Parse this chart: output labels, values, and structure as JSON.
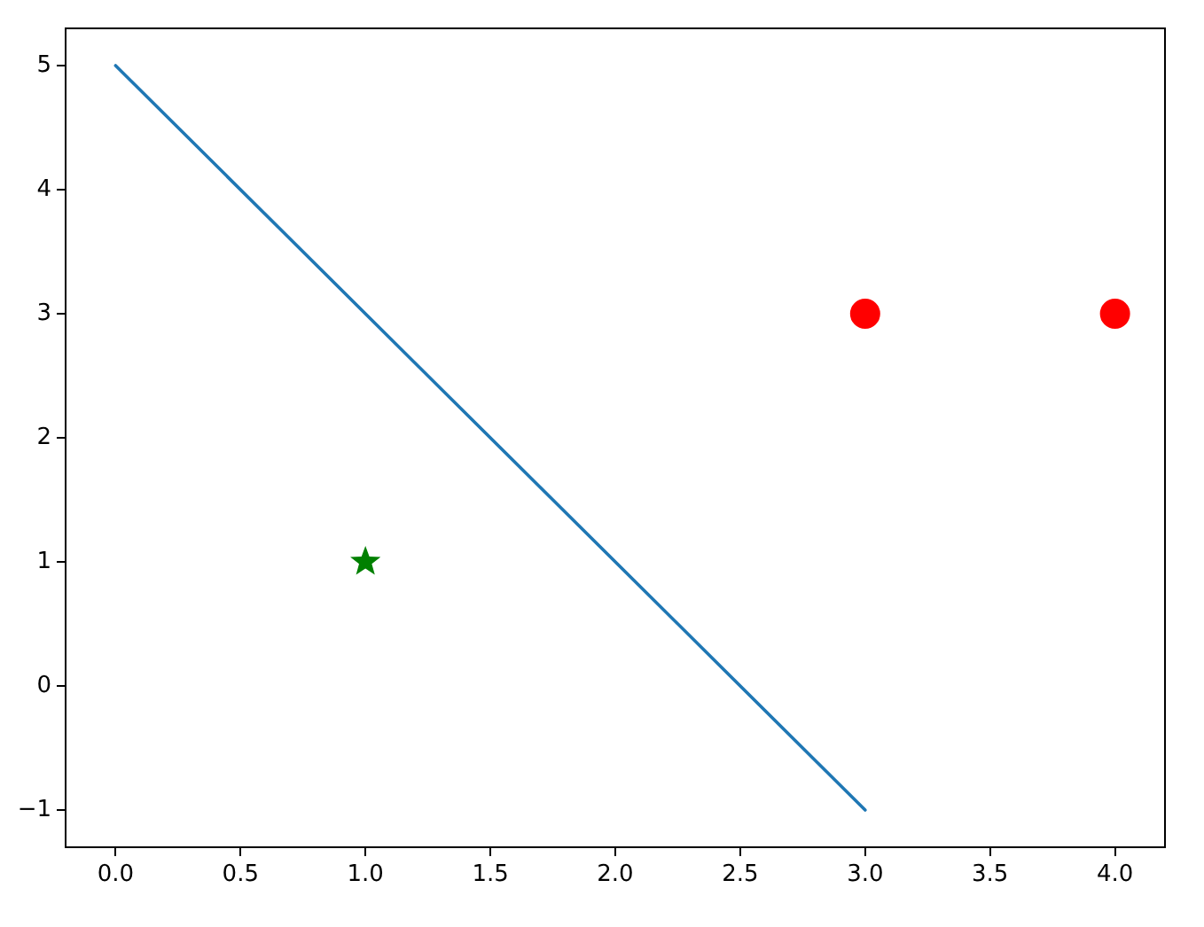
{
  "chart_data": {
    "type": "line",
    "xlim": [
      -0.2,
      4.2
    ],
    "ylim": [
      -1.3,
      5.3
    ],
    "xticks": [
      {
        "value": 0,
        "label": "0.0"
      },
      {
        "value": 0.5,
        "label": "0.5"
      },
      {
        "value": 1,
        "label": "1.0"
      },
      {
        "value": 1.5,
        "label": "1.5"
      },
      {
        "value": 2,
        "label": "2.0"
      },
      {
        "value": 2.5,
        "label": "2.5"
      },
      {
        "value": 3,
        "label": "3.0"
      },
      {
        "value": 3.5,
        "label": "3.5"
      },
      {
        "value": 4,
        "label": "4.0"
      }
    ],
    "yticks": [
      {
        "value": -1,
        "label": "−1"
      },
      0,
      1,
      2,
      3,
      4,
      5
    ],
    "grid": false,
    "legend": false,
    "series": [
      {
        "type": "line",
        "color": "#1f77b4",
        "x": [
          0,
          3
        ],
        "values": [
          5,
          -1
        ],
        "marker": "none",
        "line_style": "solid"
      },
      {
        "type": "scatter",
        "color": "#ff0000",
        "x": [
          3,
          4
        ],
        "values": [
          3,
          3
        ],
        "marker": "circle"
      },
      {
        "type": "scatter",
        "color": "#008000",
        "x": [
          1
        ],
        "values": [
          1
        ],
        "marker": "star"
      }
    ]
  }
}
